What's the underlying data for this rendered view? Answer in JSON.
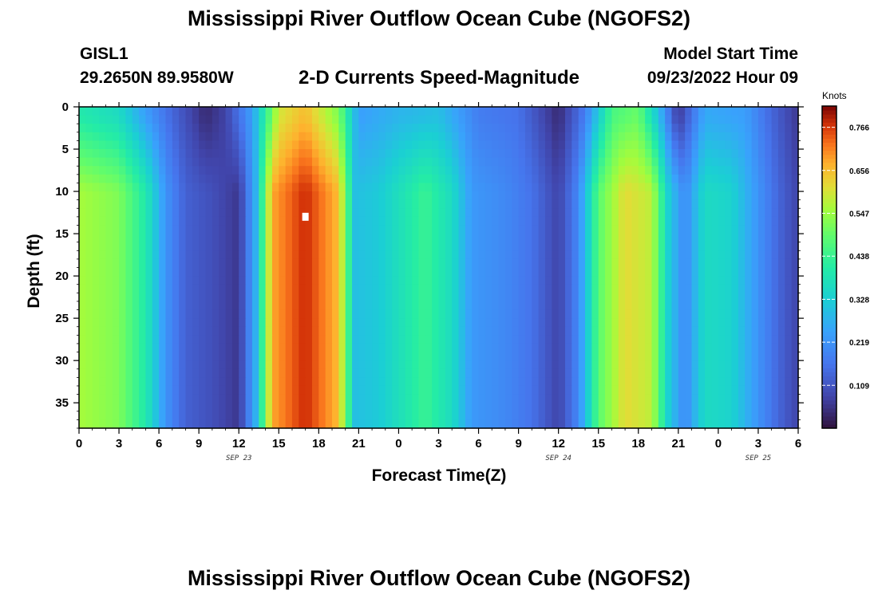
{
  "title": "Mississippi River Outflow Ocean Cube (NGOFS2)",
  "station": {
    "id": "GISL1",
    "coords": "29.2650N  89.9580W"
  },
  "model_start": {
    "label": "Model Start Time",
    "value": "09/23/2022 Hour 09"
  },
  "subtitle": "2-D Currents Speed-Magnitude",
  "footer_title": "Mississippi River Outflow Ocean Cube (NGOFS2)",
  "chart_data": {
    "type": "heatmap",
    "title": "2-D Currents Speed-Magnitude",
    "xlabel": "Forecast Time(Z)",
    "ylabel": "Depth (ft)",
    "x_range_hours": [
      0,
      54
    ],
    "y_range_ft": [
      0,
      38
    ],
    "y_inverted": true,
    "xticks": [
      {
        "h": 0,
        "label": "0"
      },
      {
        "h": 3,
        "label": "3"
      },
      {
        "h": 6,
        "label": "6"
      },
      {
        "h": 9,
        "label": "9"
      },
      {
        "h": 12,
        "label": "12"
      },
      {
        "h": 15,
        "label": "15"
      },
      {
        "h": 18,
        "label": "18"
      },
      {
        "h": 21,
        "label": "21"
      },
      {
        "h": 24,
        "label": "0"
      },
      {
        "h": 27,
        "label": "3"
      },
      {
        "h": 30,
        "label": "6"
      },
      {
        "h": 33,
        "label": "9"
      },
      {
        "h": 36,
        "label": "12"
      },
      {
        "h": 39,
        "label": "15"
      },
      {
        "h": 42,
        "label": "18"
      },
      {
        "h": 45,
        "label": "21"
      },
      {
        "h": 48,
        "label": "0"
      },
      {
        "h": 51,
        "label": "3"
      },
      {
        "h": 54,
        "label": "6"
      }
    ],
    "yticks": [
      0,
      5,
      10,
      15,
      20,
      25,
      30,
      35
    ],
    "dates": [
      {
        "h": 12,
        "label": "SEP 23"
      },
      {
        "h": 36,
        "label": "SEP 24"
      },
      {
        "h": 51,
        "label": "SEP 25"
      }
    ],
    "colorbar": {
      "label": "Knots",
      "min": 0.0,
      "max": 0.82,
      "ticks": [
        0.109,
        0.219,
        0.328,
        0.438,
        0.547,
        0.656,
        0.766
      ]
    },
    "marker": {
      "h": 17,
      "depth_ft": 13
    },
    "time_profile_deep": [
      {
        "h": 0,
        "v": 0.56
      },
      {
        "h": 3,
        "v": 0.52
      },
      {
        "h": 5,
        "v": 0.4
      },
      {
        "h": 6.5,
        "v": 0.22
      },
      {
        "h": 8,
        "v": 0.13
      },
      {
        "h": 10,
        "v": 0.1
      },
      {
        "h": 12,
        "v": 0.06
      },
      {
        "h": 13.3,
        "v": 0.28
      },
      {
        "h": 14.5,
        "v": 0.68
      },
      {
        "h": 17,
        "v": 0.78
      },
      {
        "h": 19.5,
        "v": 0.66
      },
      {
        "h": 20.7,
        "v": 0.3
      },
      {
        "h": 22.5,
        "v": 0.32
      },
      {
        "h": 26,
        "v": 0.44
      },
      {
        "h": 28,
        "v": 0.36
      },
      {
        "h": 29.5,
        "v": 0.23
      },
      {
        "h": 32,
        "v": 0.2
      },
      {
        "h": 34,
        "v": 0.16
      },
      {
        "h": 36,
        "v": 0.08
      },
      {
        "h": 37.5,
        "v": 0.2
      },
      {
        "h": 39,
        "v": 0.48
      },
      {
        "h": 41,
        "v": 0.62
      },
      {
        "h": 43,
        "v": 0.58
      },
      {
        "h": 44.3,
        "v": 0.32
      },
      {
        "h": 45.5,
        "v": 0.2
      },
      {
        "h": 47,
        "v": 0.36
      },
      {
        "h": 49,
        "v": 0.34
      },
      {
        "h": 51,
        "v": 0.22
      },
      {
        "h": 52.5,
        "v": 0.14
      },
      {
        "h": 54,
        "v": 0.08
      }
    ],
    "time_profile_surface": [
      {
        "h": 0,
        "v": 0.4
      },
      {
        "h": 3,
        "v": 0.36
      },
      {
        "h": 5,
        "v": 0.24
      },
      {
        "h": 7,
        "v": 0.14
      },
      {
        "h": 9.5,
        "v": 0.04
      },
      {
        "h": 11,
        "v": 0.08
      },
      {
        "h": 13,
        "v": 0.24
      },
      {
        "h": 15,
        "v": 0.6
      },
      {
        "h": 17,
        "v": 0.66
      },
      {
        "h": 19.5,
        "v": 0.52
      },
      {
        "h": 21,
        "v": 0.24
      },
      {
        "h": 24,
        "v": 0.28
      },
      {
        "h": 27,
        "v": 0.3
      },
      {
        "h": 30,
        "v": 0.18
      },
      {
        "h": 33,
        "v": 0.16
      },
      {
        "h": 36,
        "v": 0.04
      },
      {
        "h": 38,
        "v": 0.18
      },
      {
        "h": 40,
        "v": 0.46
      },
      {
        "h": 42,
        "v": 0.5
      },
      {
        "h": 43.5,
        "v": 0.3
      },
      {
        "h": 45,
        "v": 0.06
      },
      {
        "h": 47,
        "v": 0.26
      },
      {
        "h": 50,
        "v": 0.24
      },
      {
        "h": 52,
        "v": 0.14
      },
      {
        "h": 54,
        "v": 0.06
      }
    ]
  }
}
